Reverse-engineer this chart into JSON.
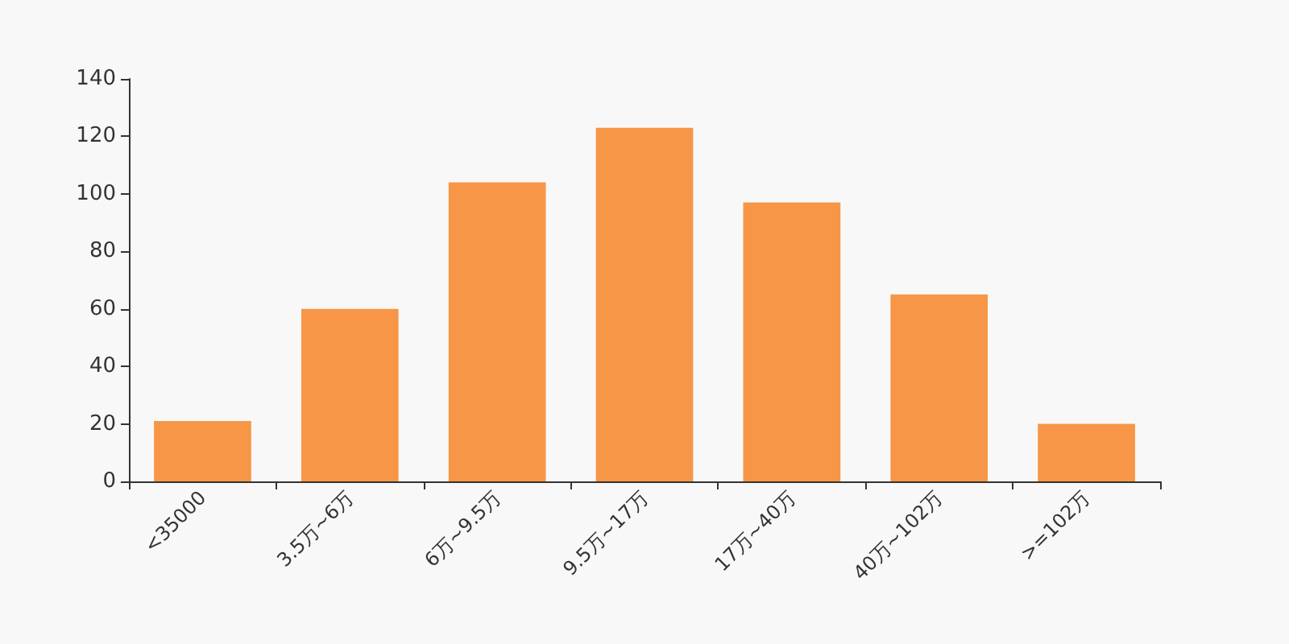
{
  "chart_data": {
    "type": "bar",
    "categories": [
      "<35000",
      "3.5万~6万",
      "6万~9.5万",
      "9.5万~17万",
      "17万~40万",
      "40万~102万",
      ">=102万"
    ],
    "values": [
      21,
      60,
      104,
      123,
      97,
      65,
      20
    ],
    "color": "#f79646",
    "ylim": [
      0,
      140
    ],
    "yticks": [
      0,
      20,
      40,
      60,
      80,
      100,
      120,
      140
    ],
    "grid": false
  }
}
